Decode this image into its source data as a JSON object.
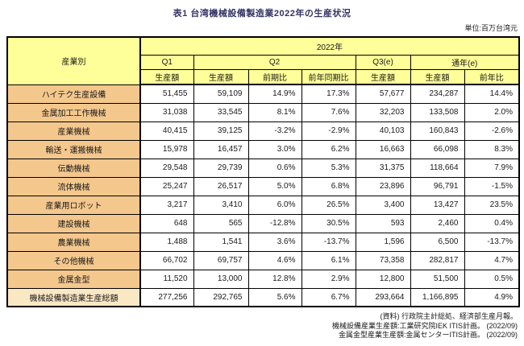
{
  "title": "表1 台湾機械設備製造業2022年の生産状況",
  "unit_label": "単位:百万台湾元",
  "table": {
    "header": {
      "industry": "産業別",
      "year": "2022年",
      "period_groups": [
        {
          "label": "Q1",
          "colspan": 1
        },
        {
          "label": "Q2",
          "colspan": 3
        },
        {
          "label": "Q3(e)",
          "colspan": 1
        },
        {
          "label": "通年(e)",
          "colspan": 2
        }
      ],
      "measures": [
        "生産額",
        "生産額",
        "前期比",
        "前年同期比",
        "生産額",
        "生産額",
        "前年比"
      ]
    },
    "rows": [
      {
        "label": "ハイテク生産設備",
        "values": [
          "51,455",
          "59,109",
          "14.9%",
          "17.3%",
          "57,677",
          "234,287",
          "14.4%"
        ],
        "total": false
      },
      {
        "label": "金属加工工作機械",
        "values": [
          "31,038",
          "33,545",
          "8.1%",
          "7.6%",
          "32,203",
          "133,508",
          "2.0%"
        ],
        "total": false
      },
      {
        "label": "産業機械",
        "values": [
          "40,415",
          "39,125",
          "-3.2%",
          "-2.9%",
          "40,103",
          "160,843",
          "-2.6%"
        ],
        "total": false
      },
      {
        "label": "輸送・運搬機械",
        "values": [
          "15,978",
          "16,457",
          "3.0%",
          "6.2%",
          "16,663",
          "66,098",
          "8.3%"
        ],
        "total": false
      },
      {
        "label": "伝動機械",
        "values": [
          "29,548",
          "29,739",
          "0.6%",
          "5.3%",
          "31,375",
          "118,664",
          "7.9%"
        ],
        "total": false
      },
      {
        "label": "流体機械",
        "values": [
          "25,247",
          "26,517",
          "5.0%",
          "6.8%",
          "23,896",
          "96,791",
          "-1.5%"
        ],
        "total": false
      },
      {
        "label": "産業用ロボット",
        "values": [
          "3,217",
          "3,410",
          "6.0%",
          "26.5%",
          "3,400",
          "13,427",
          "23.5%"
        ],
        "total": false
      },
      {
        "label": "建設機械",
        "values": [
          "648",
          "565",
          "-12.8%",
          "30.5%",
          "593",
          "2,460",
          "0.4%"
        ],
        "total": false
      },
      {
        "label": "農業機械",
        "values": [
          "1,488",
          "1,541",
          "3.6%",
          "-13.7%",
          "1,596",
          "6,500",
          "-13.7%"
        ],
        "total": false
      },
      {
        "label": "その他機械",
        "values": [
          "66,702",
          "69,757",
          "4.6%",
          "6.1%",
          "73,358",
          "282,817",
          "4.7%"
        ],
        "total": false
      },
      {
        "label": "金属金型",
        "values": [
          "11,520",
          "13,000",
          "12.8%",
          "2.9%",
          "12,800",
          "51,500",
          "0.5%"
        ],
        "total": false
      },
      {
        "label": "機械設備製造業生産総額",
        "values": [
          "277,256",
          "292,765",
          "5.6%",
          "6.7%",
          "293,664",
          "1,166,895",
          "4.9%"
        ],
        "total": true
      }
    ]
  },
  "footnotes": [
    "(資料) 行政院主計総処、経済部生産月報。",
    "機械設備産業生産額:工業研究院IEK ITIS計画。 (2022/09)",
    "金属金型産業生産額:金属センターITIS計画。 (2022/09)"
  ],
  "colors": {
    "title_color": "#333366",
    "header_bg": "#FFFF99",
    "row_label_bg": "#F4C78D",
    "total_label_bg": "#FAE7C4",
    "border": "#000000"
  }
}
